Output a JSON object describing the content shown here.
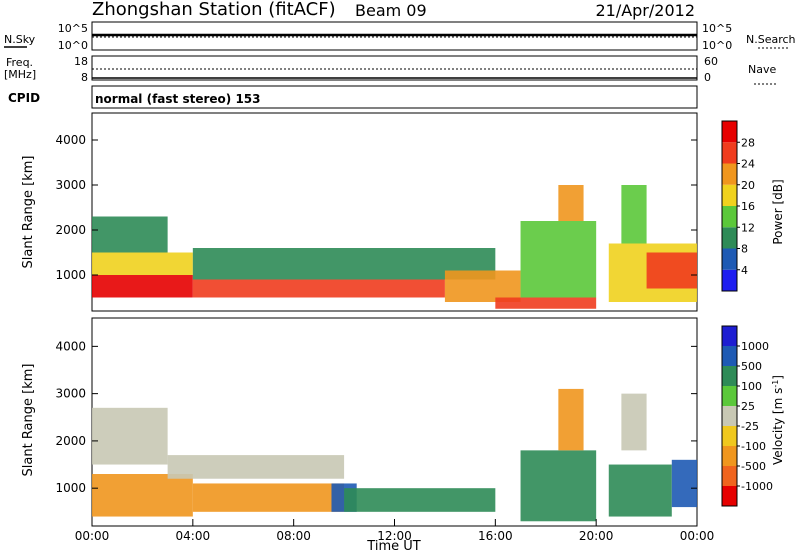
{
  "header": {
    "station": "Zhongshan Station (fitACF)",
    "beam": "Beam 09",
    "date": "21/Apr/2012"
  },
  "noise_panel": {
    "left_label": "N.Sky",
    "right_label": "N.Search",
    "ticks_left": [
      "10^5",
      "10^0"
    ],
    "ticks_right": [
      "10^5",
      "10^0"
    ]
  },
  "freq_panel": {
    "left_label_1": "Freq.",
    "left_label_2": "[MHz]",
    "left_ticks": [
      "18",
      "8"
    ],
    "right_label": "Nave",
    "right_ticks": [
      "60",
      "0"
    ]
  },
  "cpid": {
    "label": "CPID",
    "text": "normal (fast stereo) 153"
  },
  "chart_data": [
    {
      "type": "heatmap",
      "title": "",
      "xlabel": "Time UT",
      "ylabel": "Slant Range [km]",
      "x_ticks": [
        "00:00",
        "04:00",
        "08:00",
        "12:00",
        "16:00",
        "20:00",
        "00:00"
      ],
      "y_ticks": [
        1000,
        2000,
        3000,
        4000
      ],
      "ylim": [
        200,
        4600
      ],
      "colorbar": {
        "label": "Power [dB]",
        "ticks": [
          4,
          8,
          12,
          16,
          20,
          24,
          28
        ],
        "colors": [
          "#1e1ef0",
          "#1e5ab4",
          "#2e8b57",
          "#5bc83a",
          "#f0d21e",
          "#f0961e",
          "#f03c1e",
          "#e60000"
        ]
      },
      "bands": [
        {
          "time_start_h": 0.0,
          "time_end_h": 4.0,
          "range_start_km": 500,
          "range_end_km": 1000,
          "power_db": 28
        },
        {
          "time_start_h": 4.0,
          "time_end_h": 14.0,
          "range_start_km": 500,
          "range_end_km": 900,
          "power_db": 24
        },
        {
          "time_start_h": 0.0,
          "time_end_h": 4.0,
          "range_start_km": 1000,
          "range_end_km": 1500,
          "power_db": 16
        },
        {
          "time_start_h": 0.0,
          "time_end_h": 3.0,
          "range_start_km": 1500,
          "range_end_km": 2300,
          "power_db": 8
        },
        {
          "time_start_h": 4.0,
          "time_end_h": 16.0,
          "range_start_km": 900,
          "range_end_km": 1600,
          "power_db": 8
        },
        {
          "time_start_h": 14.0,
          "time_end_h": 17.0,
          "range_start_km": 400,
          "range_end_km": 1100,
          "power_db": 20
        },
        {
          "time_start_h": 16.0,
          "time_end_h": 20.0,
          "range_start_km": 250,
          "range_end_km": 500,
          "power_db": 24
        },
        {
          "time_start_h": 17.0,
          "time_end_h": 20.0,
          "range_start_km": 500,
          "range_end_km": 2200,
          "power_db": 12
        },
        {
          "time_start_h": 18.5,
          "time_end_h": 19.5,
          "range_start_km": 2200,
          "range_end_km": 3000,
          "power_db": 20
        },
        {
          "time_start_h": 20.5,
          "time_end_h": 24.0,
          "range_start_km": 400,
          "range_end_km": 1700,
          "power_db": 16
        },
        {
          "time_start_h": 21.0,
          "time_end_h": 22.0,
          "range_start_km": 1700,
          "range_end_km": 3000,
          "power_db": 12
        },
        {
          "time_start_h": 22.0,
          "time_end_h": 24.0,
          "range_start_km": 700,
          "range_end_km": 1500,
          "power_db": 24
        }
      ]
    },
    {
      "type": "heatmap",
      "title": "",
      "xlabel": "Time UT",
      "ylabel": "Slant Range [km]",
      "x_ticks": [
        "00:00",
        "04:00",
        "08:00",
        "12:00",
        "16:00",
        "20:00",
        "00:00"
      ],
      "y_ticks": [
        1000,
        2000,
        3000,
        4000
      ],
      "ylim": [
        200,
        4600
      ],
      "colorbar": {
        "label": "Velocity [m s^-1]",
        "ticks": [
          1000,
          500,
          100,
          25,
          -25,
          -100,
          -500,
          -1000
        ],
        "colors": [
          "#1e1ed2",
          "#1e5ab4",
          "#2e8b57",
          "#5bc83a",
          "#c8c8b4",
          "#f0c81e",
          "#f0961e",
          "#f0641e",
          "#e60000"
        ]
      },
      "bands": [
        {
          "time_start_h": 0.0,
          "time_end_h": 3.0,
          "range_start_km": 1500,
          "range_end_km": 2700,
          "velocity_ms": 0
        },
        {
          "time_start_h": 0.0,
          "time_end_h": 4.0,
          "range_start_km": 400,
          "range_end_km": 1300,
          "velocity_ms": -400
        },
        {
          "time_start_h": 4.0,
          "time_end_h": 10.0,
          "range_start_km": 500,
          "range_end_km": 1100,
          "velocity_ms": -300
        },
        {
          "time_start_h": 3.0,
          "time_end_h": 10.0,
          "range_start_km": 1200,
          "range_end_km": 1700,
          "velocity_ms": 0
        },
        {
          "time_start_h": 9.5,
          "time_end_h": 10.5,
          "range_start_km": 500,
          "range_end_km": 1100,
          "velocity_ms": 700
        },
        {
          "time_start_h": 10.0,
          "time_end_h": 16.0,
          "range_start_km": 500,
          "range_end_km": 1000,
          "velocity_ms": 150
        },
        {
          "time_start_h": 17.0,
          "time_end_h": 20.0,
          "range_start_km": 300,
          "range_end_km": 1800,
          "velocity_ms": 150
        },
        {
          "time_start_h": 18.5,
          "time_end_h": 19.5,
          "range_start_km": 1800,
          "range_end_km": 3100,
          "velocity_ms": -500
        },
        {
          "time_start_h": 21.0,
          "time_end_h": 22.0,
          "range_start_km": 1800,
          "range_end_km": 3000,
          "velocity_ms": 0
        },
        {
          "time_start_h": 20.5,
          "time_end_h": 23.0,
          "range_start_km": 400,
          "range_end_km": 1500,
          "velocity_ms": 150
        },
        {
          "time_start_h": 23.0,
          "time_end_h": 24.0,
          "range_start_km": 600,
          "range_end_km": 1600,
          "velocity_ms": 900
        }
      ]
    }
  ]
}
